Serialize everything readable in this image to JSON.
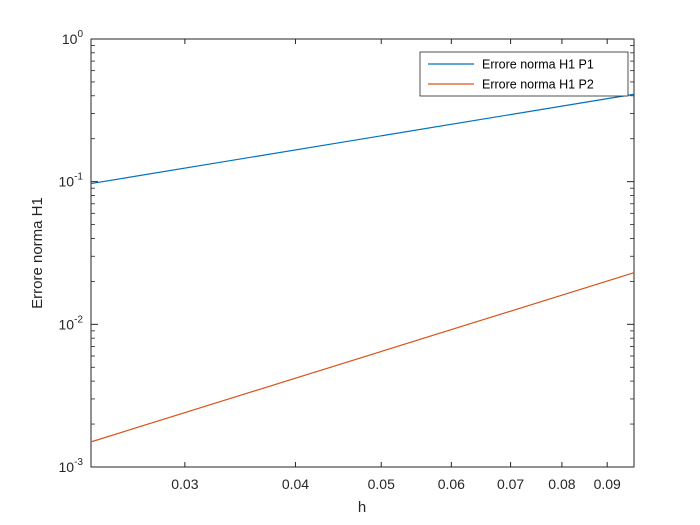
{
  "chart_data": {
    "type": "line",
    "xlabel": "h",
    "ylabel": "Errore norma H1",
    "xscale": "log",
    "yscale": "log",
    "xlim": [
      0.0235,
      0.0965
    ],
    "ylim": [
      0.001,
      1
    ],
    "xticks": [
      {
        "value": 0.03,
        "label": "0.03"
      },
      {
        "value": 0.04,
        "label": "0.04"
      },
      {
        "value": 0.05,
        "label": "0.05"
      },
      {
        "value": 0.06,
        "label": "0.06"
      },
      {
        "value": 0.07,
        "label": "0.07"
      },
      {
        "value": 0.08,
        "label": "0.08"
      },
      {
        "value": 0.09,
        "label": "0.09"
      }
    ],
    "yticks": [
      {
        "value": 0.001,
        "base": "10",
        "exp": "-3"
      },
      {
        "value": 0.01,
        "base": "10",
        "exp": "-2"
      },
      {
        "value": 0.1,
        "base": "10",
        "exp": "-1"
      },
      {
        "value": 1,
        "base": "10",
        "exp": "0"
      }
    ],
    "legend_position": "top-right",
    "grid": false,
    "series": [
      {
        "name": "Errore norma H1 P1",
        "color": "#0072BD",
        "x": [
          0.0235,
          0.0965
        ],
        "y": [
          0.097,
          0.41
        ]
      },
      {
        "name": "Errore norma H1 P2",
        "color": "#D95319",
        "x": [
          0.0235,
          0.0965
        ],
        "y": [
          0.0015,
          0.023
        ]
      }
    ]
  }
}
